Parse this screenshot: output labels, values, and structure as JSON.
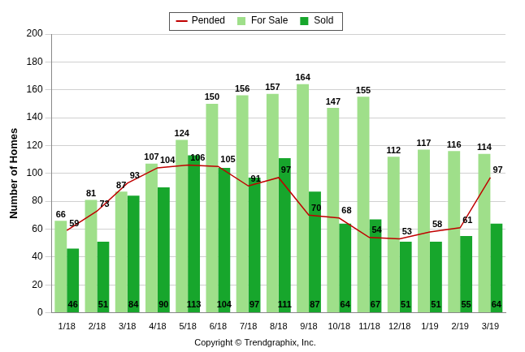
{
  "chart_data": {
    "type": "bar",
    "y_label": "Number of Homes",
    "annotation": "Copyright © Trendgraphix, Inc.",
    "categories": [
      "1/18",
      "2/18",
      "3/18",
      "4/18",
      "5/18",
      "6/18",
      "7/18",
      "8/18",
      "9/18",
      "10/18",
      "11/18",
      "12/18",
      "1/19",
      "2/19",
      "3/19"
    ],
    "series": [
      {
        "name": "For Sale",
        "type": "bar",
        "color": "#9fdf8a",
        "values": [
          66,
          81,
          87,
          107,
          124,
          150,
          156,
          157,
          164,
          147,
          155,
          112,
          117,
          116,
          114
        ]
      },
      {
        "name": "Sold",
        "type": "bar",
        "color": "#17a62c",
        "values": [
          46,
          51,
          84,
          90,
          113,
          104,
          97,
          111,
          87,
          64,
          67,
          51,
          51,
          55,
          64
        ]
      },
      {
        "name": "Pended",
        "type": "line",
        "color": "#c00000",
        "values": [
          59,
          73,
          93,
          104,
          106,
          105,
          91,
          97,
          70,
          68,
          54,
          53,
          58,
          61,
          97
        ]
      }
    ],
    "ylim": [
      0,
      200
    ],
    "yticks": [
      0,
      20,
      40,
      60,
      80,
      100,
      120,
      140,
      160,
      180,
      200
    ],
    "grid": true,
    "legend": "top",
    "data_labels": true
  }
}
